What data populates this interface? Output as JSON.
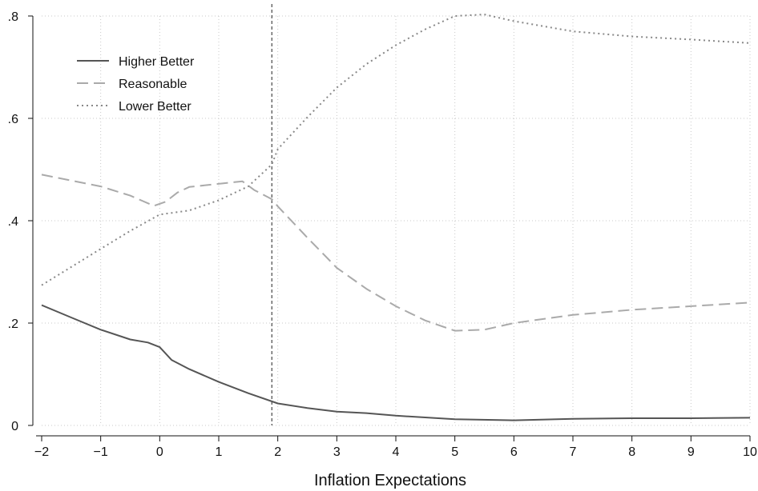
{
  "chart_data": {
    "type": "line",
    "xlabel": "Inflation Expectations",
    "ylabel": "",
    "xlim": [
      -2,
      10
    ],
    "ylim": [
      0,
      0.8
    ],
    "xticks": [
      -2,
      -1,
      0,
      1,
      2,
      3,
      4,
      5,
      6,
      7,
      8,
      9,
      10
    ],
    "xtick_labels": [
      "−2",
      "−1",
      "0",
      "1",
      "2",
      "3",
      "4",
      "5",
      "6",
      "7",
      "8",
      "9",
      "10"
    ],
    "yticks": [
      0,
      0.2,
      0.4,
      0.6,
      0.8
    ],
    "ytick_labels": [
      "0",
      ".2",
      ".4",
      ".6",
      ".8"
    ],
    "grid": true,
    "legend_position": "top-left",
    "reference_line_x": 1.9,
    "series": [
      {
        "name": "Higher Better",
        "style": "solid",
        "color": "#555555",
        "x": [
          -2,
          -1.5,
          -1,
          -0.5,
          -0.2,
          0,
          0.2,
          0.5,
          1,
          1.5,
          2,
          2.5,
          3,
          3.5,
          4,
          5,
          6,
          7,
          8,
          9,
          10
        ],
        "y": [
          0.235,
          0.211,
          0.187,
          0.168,
          0.162,
          0.153,
          0.128,
          0.11,
          0.085,
          0.063,
          0.043,
          0.034,
          0.027,
          0.024,
          0.019,
          0.012,
          0.01,
          0.013,
          0.014,
          0.014,
          0.015
        ]
      },
      {
        "name": "Reasonable",
        "style": "dash",
        "color": "#aaaaaa",
        "x": [
          -2,
          -1,
          -0.5,
          -0.1,
          0.1,
          0.3,
          0.5,
          1,
          1.4,
          1.6,
          1.9,
          2,
          2.5,
          3,
          3.5,
          4,
          4.5,
          5,
          5.5,
          6,
          7,
          8,
          9,
          10
        ],
        "y": [
          0.49,
          0.467,
          0.449,
          0.429,
          0.437,
          0.455,
          0.466,
          0.472,
          0.477,
          0.46,
          0.442,
          0.428,
          0.367,
          0.308,
          0.267,
          0.233,
          0.205,
          0.185,
          0.187,
          0.2,
          0.216,
          0.226,
          0.233,
          0.24
        ]
      },
      {
        "name": "Lower Better",
        "style": "dot",
        "color": "#888888",
        "x": [
          -2,
          -1,
          -0.5,
          0,
          0.5,
          1,
          1.5,
          1.9,
          2,
          2.5,
          3,
          3.5,
          4,
          4.5,
          5,
          5.5,
          6,
          7,
          8,
          9,
          10
        ],
        "y": [
          0.274,
          0.345,
          0.38,
          0.412,
          0.42,
          0.44,
          0.467,
          0.51,
          0.54,
          0.602,
          0.66,
          0.706,
          0.743,
          0.774,
          0.8,
          0.803,
          0.79,
          0.77,
          0.76,
          0.754,
          0.747
        ]
      }
    ]
  }
}
